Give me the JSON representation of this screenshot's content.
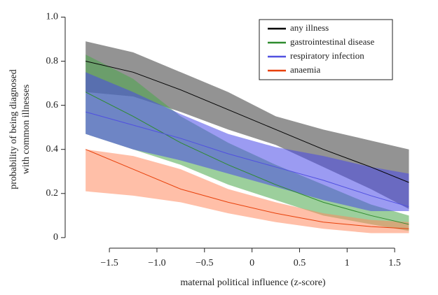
{
  "chart_data": {
    "type": "line",
    "xlabel": "maternal political influence (z-score)",
    "ylabel": [
      "probability of being diagnosed",
      "with common illnesses"
    ],
    "x": [
      -1.75,
      -1.25,
      -0.75,
      -0.25,
      0.25,
      0.75,
      1.25,
      1.65
    ],
    "xlim": [
      -1.965,
      1.86
    ],
    "ylim": [
      -0.048,
      1.03
    ],
    "xticks": [
      {
        "value": -1.5,
        "label": "−1.5"
      },
      {
        "value": -1,
        "label": "−1.0"
      },
      {
        "value": -0.5,
        "label": "−0.5"
      },
      0,
      0.5,
      1.0,
      1.5
    ],
    "yticks": [
      0,
      0.2,
      0.4,
      0.6,
      0.8,
      {
        "value": 1,
        "label": "1.0"
      }
    ],
    "legend": "upper right",
    "series": [
      {
        "name": "any illness",
        "color": "#000000",
        "band_color": "#808080",
        "values": [
          0.8,
          0.75,
          0.67,
          0.58,
          0.49,
          0.4,
          0.32,
          0.25
        ],
        "upper": [
          0.89,
          0.84,
          0.75,
          0.66,
          0.55,
          0.49,
          0.44,
          0.4
        ],
        "lower": [
          0.66,
          0.64,
          0.57,
          0.49,
          0.42,
          0.32,
          0.22,
          0.13
        ]
      },
      {
        "name": "gastrointestinal disease",
        "color": "#2e8b2e",
        "band_color": "#4aa84a",
        "values": [
          0.66,
          0.55,
          0.43,
          0.33,
          0.24,
          0.16,
          0.1,
          0.06
        ],
        "upper": [
          0.83,
          0.72,
          0.55,
          0.43,
          0.33,
          0.24,
          0.15,
          0.1
        ],
        "lower": [
          0.47,
          0.4,
          0.33,
          0.24,
          0.17,
          0.1,
          0.06,
          0.03
        ]
      },
      {
        "name": "respiratory infection",
        "color": "#5050e0",
        "band_color": "#4848e8",
        "values": [
          0.57,
          0.51,
          0.45,
          0.38,
          0.32,
          0.26,
          0.19,
          0.14
        ],
        "upper": [
          0.75,
          0.66,
          0.56,
          0.47,
          0.41,
          0.37,
          0.32,
          0.29
        ],
        "lower": [
          0.47,
          0.4,
          0.35,
          0.29,
          0.23,
          0.17,
          0.12,
          0.12
        ]
      },
      {
        "name": "anaemia",
        "color": "#e8400a",
        "band_color": "#ff8a60",
        "values": [
          0.4,
          0.31,
          0.22,
          0.16,
          0.11,
          0.07,
          0.05,
          0.04
        ],
        "upper": [
          0.4,
          0.37,
          0.31,
          0.22,
          0.16,
          0.11,
          0.08,
          0.07
        ],
        "lower": [
          0.21,
          0.19,
          0.16,
          0.11,
          0.07,
          0.04,
          0.02,
          0.02
        ]
      }
    ]
  }
}
